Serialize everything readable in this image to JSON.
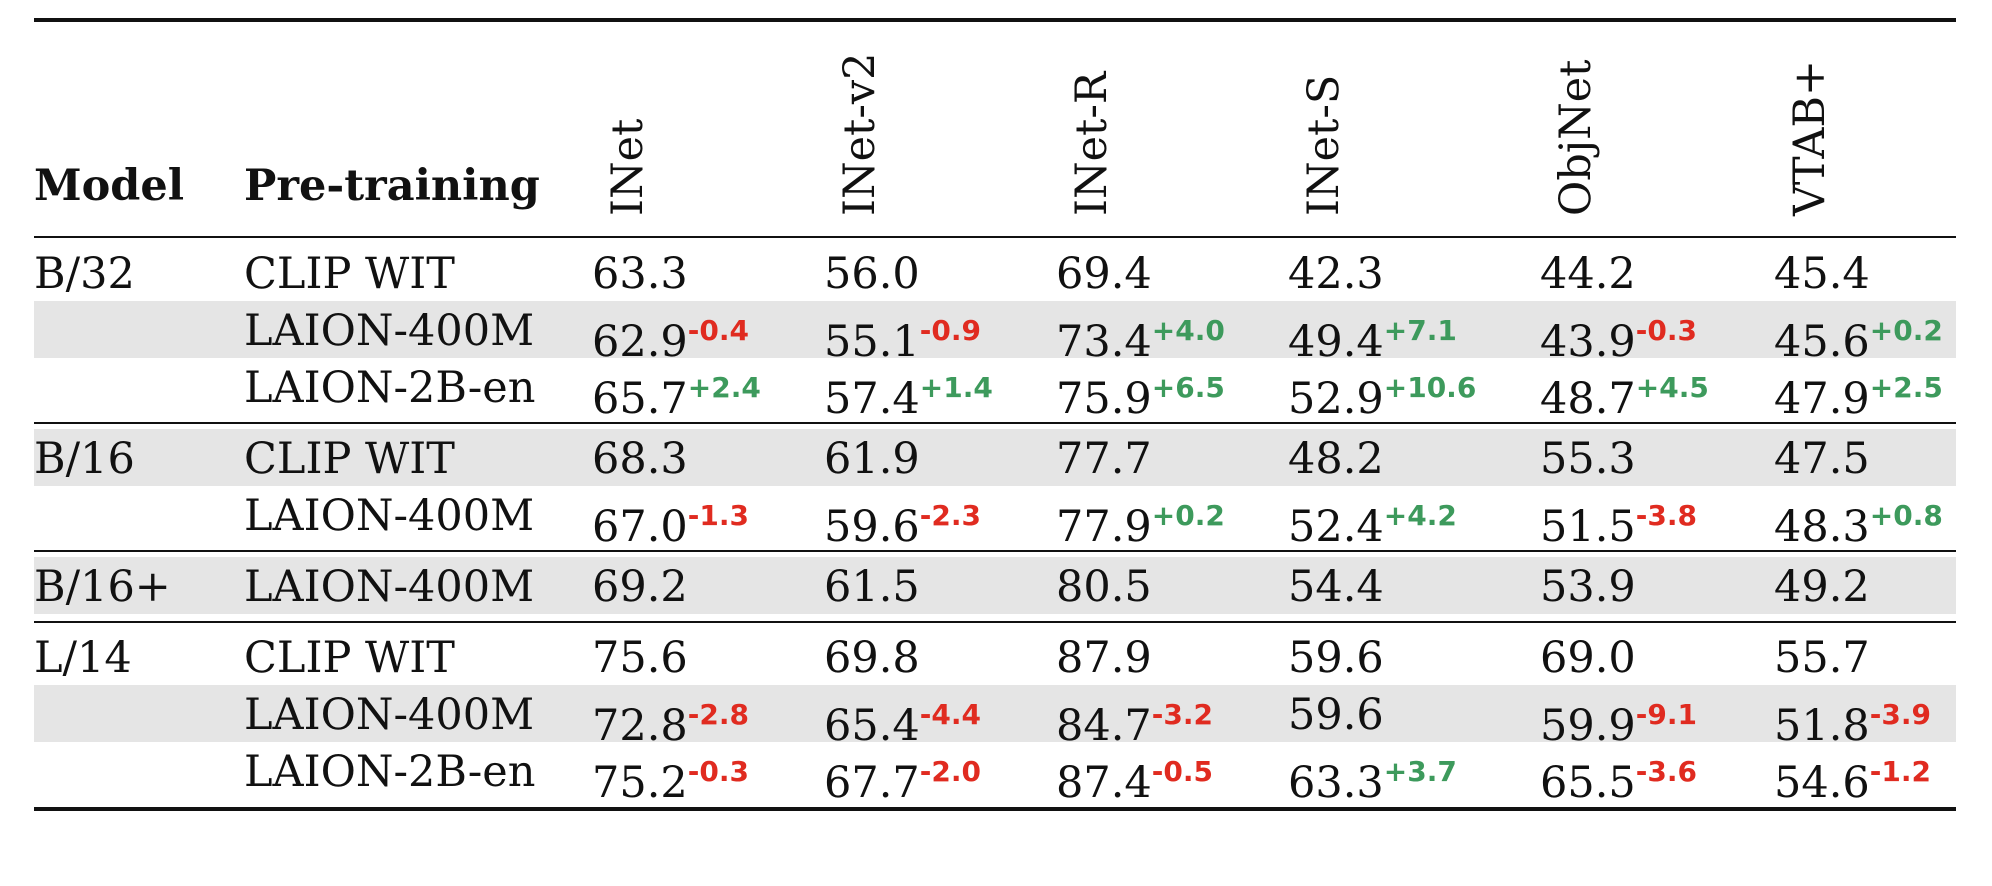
{
  "header": {
    "model": "Model",
    "pretraining": "Pre-training",
    "columns": [
      "INet",
      "INet-v2",
      "INet-R",
      "INet-S",
      "ObjNet",
      "VTAB+"
    ]
  },
  "groups": [
    {
      "model": "B/32",
      "rows": [
        {
          "pretraining": "CLIP WIT",
          "shaded": false,
          "cells": [
            {
              "value": "63.3",
              "delta": ""
            },
            {
              "value": "56.0",
              "delta": ""
            },
            {
              "value": "69.4",
              "delta": ""
            },
            {
              "value": "42.3",
              "delta": ""
            },
            {
              "value": "44.2",
              "delta": ""
            },
            {
              "value": "45.4",
              "delta": ""
            }
          ]
        },
        {
          "pretraining": "LAION-400M",
          "shaded": true,
          "cells": [
            {
              "value": "62.9",
              "delta": "-0.4"
            },
            {
              "value": "55.1",
              "delta": "-0.9"
            },
            {
              "value": "73.4",
              "delta": "+4.0"
            },
            {
              "value": "49.4",
              "delta": "+7.1"
            },
            {
              "value": "43.9",
              "delta": "-0.3"
            },
            {
              "value": "45.6",
              "delta": "+0.2"
            }
          ]
        },
        {
          "pretraining": "LAION-2B-en",
          "shaded": false,
          "cells": [
            {
              "value": "65.7",
              "delta": "+2.4"
            },
            {
              "value": "57.4",
              "delta": "+1.4"
            },
            {
              "value": "75.9",
              "delta": "+6.5"
            },
            {
              "value": "52.9",
              "delta": "+10.6"
            },
            {
              "value": "48.7",
              "delta": "+4.5"
            },
            {
              "value": "47.9",
              "delta": "+2.5"
            }
          ]
        }
      ]
    },
    {
      "model": "B/16",
      "rows": [
        {
          "pretraining": "CLIP WIT",
          "shaded": true,
          "cells": [
            {
              "value": "68.3",
              "delta": ""
            },
            {
              "value": "61.9",
              "delta": ""
            },
            {
              "value": "77.7",
              "delta": ""
            },
            {
              "value": "48.2",
              "delta": ""
            },
            {
              "value": "55.3",
              "delta": ""
            },
            {
              "value": "47.5",
              "delta": ""
            }
          ]
        },
        {
          "pretraining": "LAION-400M",
          "shaded": false,
          "cells": [
            {
              "value": "67.0",
              "delta": "-1.3"
            },
            {
              "value": "59.6",
              "delta": "-2.3"
            },
            {
              "value": "77.9",
              "delta": "+0.2"
            },
            {
              "value": "52.4",
              "delta": "+4.2"
            },
            {
              "value": "51.5",
              "delta": "-3.8"
            },
            {
              "value": "48.3",
              "delta": "+0.8"
            }
          ]
        }
      ]
    },
    {
      "model": "B/16+",
      "rows": [
        {
          "pretraining": "LAION-400M",
          "shaded": true,
          "cells": [
            {
              "value": "69.2",
              "delta": ""
            },
            {
              "value": "61.5",
              "delta": ""
            },
            {
              "value": "80.5",
              "delta": ""
            },
            {
              "value": "54.4",
              "delta": ""
            },
            {
              "value": "53.9",
              "delta": ""
            },
            {
              "value": "49.2",
              "delta": ""
            }
          ]
        }
      ]
    },
    {
      "model": "L/14",
      "rows": [
        {
          "pretraining": "CLIP WIT",
          "shaded": false,
          "cells": [
            {
              "value": "75.6",
              "delta": ""
            },
            {
              "value": "69.8",
              "delta": ""
            },
            {
              "value": "87.9",
              "delta": ""
            },
            {
              "value": "59.6",
              "delta": ""
            },
            {
              "value": "69.0",
              "delta": ""
            },
            {
              "value": "55.7",
              "delta": ""
            }
          ]
        },
        {
          "pretraining": "LAION-400M",
          "shaded": true,
          "cells": [
            {
              "value": "72.8",
              "delta": "-2.8"
            },
            {
              "value": "65.4",
              "delta": "-4.4"
            },
            {
              "value": "84.7",
              "delta": "-3.2"
            },
            {
              "value": "59.6",
              "delta": ""
            },
            {
              "value": "59.9",
              "delta": "-9.1"
            },
            {
              "value": "51.8",
              "delta": "-3.9"
            }
          ]
        },
        {
          "pretraining": "LAION-2B-en",
          "shaded": false,
          "cells": [
            {
              "value": "75.2",
              "delta": "-0.3"
            },
            {
              "value": "67.7",
              "delta": "-2.0"
            },
            {
              "value": "87.4",
              "delta": "-0.5"
            },
            {
              "value": "63.3",
              "delta": "+3.7"
            },
            {
              "value": "65.5",
              "delta": "-3.6"
            },
            {
              "value": "54.6",
              "delta": "-1.2"
            }
          ]
        }
      ]
    }
  ],
  "colors": {
    "negative": "#e02b20",
    "positive": "#3d9a5c",
    "shade": "#e5e5e5",
    "rule": "#111111"
  }
}
